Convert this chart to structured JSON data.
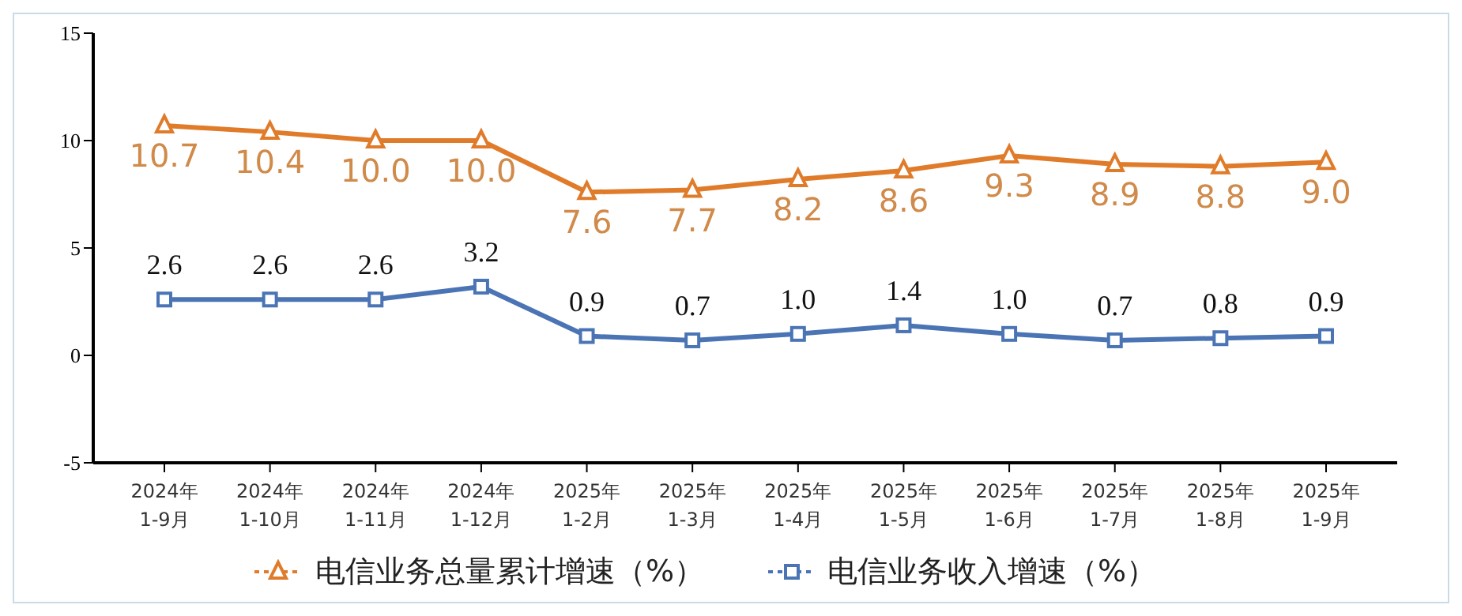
{
  "chart_data": {
    "type": "line",
    "categories": [
      "2024年\n1-9月",
      "2024年\n1-10月",
      "2024年\n1-11月",
      "2024年\n1-12月",
      "2025年\n1-2月",
      "2025年\n1-3月",
      "2025年\n1-4月",
      "2025年\n1-5月",
      "2025年\n1-6月",
      "2025年\n1-7月",
      "2025年\n1-8月",
      "2025年\n1-9月"
    ],
    "series": [
      {
        "name": "电信业务总量累计增速（%）",
        "color": "#e07b2a",
        "marker": "triangle",
        "values": [
          10.7,
          10.4,
          10.0,
          10.0,
          7.6,
          7.7,
          8.2,
          8.6,
          9.3,
          8.9,
          8.8,
          9.0
        ],
        "value_labels": [
          "10.7",
          "10.4",
          "10.0",
          "10.0",
          "7.6",
          "7.7",
          "8.2",
          "8.6",
          "9.3",
          "8.9",
          "8.8",
          "9.0"
        ]
      },
      {
        "name": "电信业务收入增速（%）",
        "color": "#4a74b4",
        "marker": "square",
        "values": [
          2.6,
          2.6,
          2.6,
          3.2,
          0.9,
          0.7,
          1.0,
          1.4,
          1.0,
          0.7,
          0.8,
          0.9
        ],
        "value_labels": [
          "2.6",
          "2.6",
          "2.6",
          "3.2",
          "0.9",
          "0.7",
          "1.0",
          "1.4",
          "1.0",
          "0.7",
          "0.8",
          "0.9"
        ]
      }
    ],
    "ylim": [
      -5,
      15
    ],
    "yticks": [
      -5,
      0,
      5,
      10,
      15
    ],
    "grid": false,
    "legend": "bottom"
  }
}
